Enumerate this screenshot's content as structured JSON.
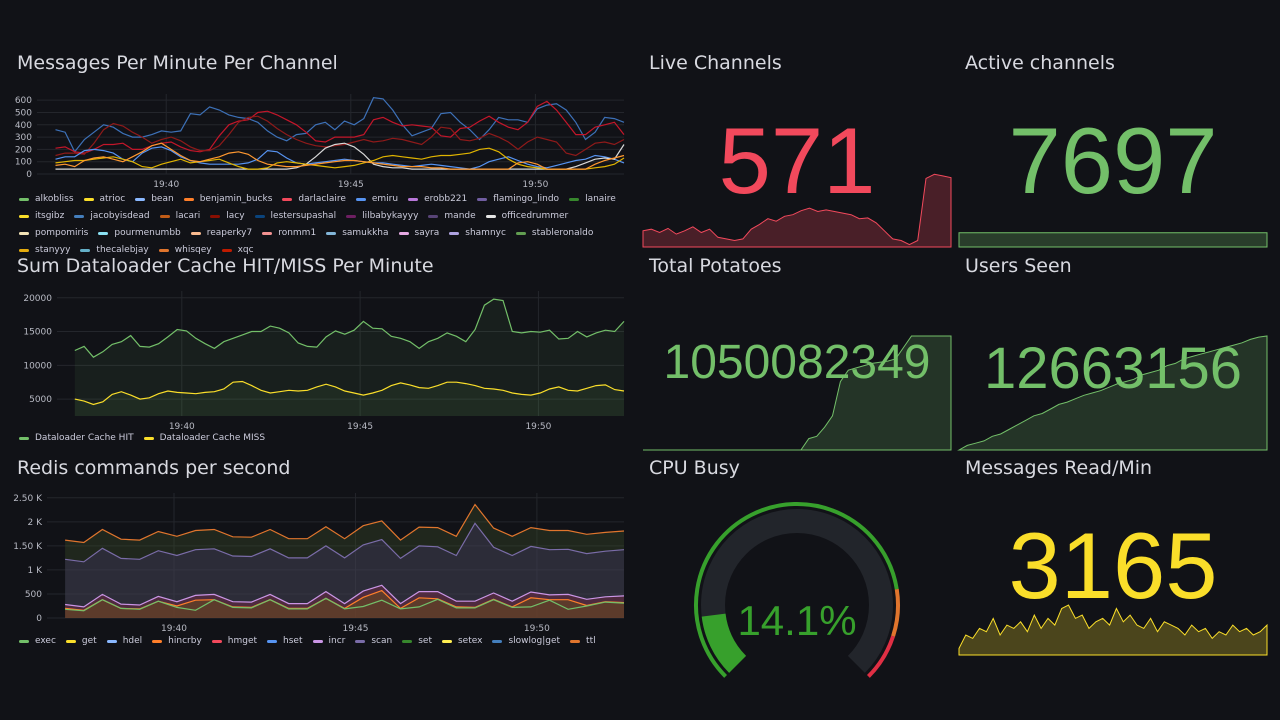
{
  "time_ticks": [
    "19:40",
    "19:45",
    "19:50"
  ],
  "chart_data": [
    {
      "type": "line",
      "title": "Messages Per Minute Per Channel",
      "ylim": [
        0,
        650
      ],
      "yticks": [
        "0",
        "100",
        "200",
        "300",
        "400",
        "500",
        "600"
      ],
      "xlabel": "",
      "ylabel": "",
      "x_start_min": 37,
      "x_step_min": 0.5,
      "series": [
        {
          "name": "lestersupashal",
          "color": "#3d71b8",
          "values": [
            360,
            340,
            180,
            280,
            340,
            400,
            380,
            330,
            300,
            300,
            320,
            350,
            340,
            350,
            490,
            480,
            545,
            520,
            480,
            460,
            450,
            420,
            350,
            300,
            270,
            320,
            330,
            400,
            420,
            360,
            430,
            400,
            450,
            620,
            610,
            520,
            400,
            310,
            340,
            370,
            490,
            500,
            420,
            360,
            280,
            360,
            460,
            440,
            440,
            420,
            530,
            560,
            570,
            520,
            420,
            280,
            340,
            460,
            450,
            420
          ]
        },
        {
          "name": "xqc",
          "color": "#c4162a",
          "values": [
            210,
            220,
            180,
            170,
            200,
            240,
            240,
            250,
            200,
            200,
            230,
            250,
            260,
            220,
            190,
            180,
            200,
            310,
            400,
            430,
            440,
            500,
            510,
            480,
            440,
            400,
            340,
            270,
            260,
            300,
            300,
            300,
            320,
            440,
            460,
            420,
            390,
            400,
            390,
            380,
            310,
            300,
            370,
            380,
            430,
            470,
            420,
            380,
            360,
            420,
            550,
            590,
            520,
            420,
            320,
            320,
            380,
            400,
            420,
            320
          ]
        },
        {
          "name": "lacy",
          "color": "#8f1a1a",
          "values": [
            150,
            170,
            170,
            160,
            250,
            360,
            410,
            390,
            340,
            300,
            250,
            280,
            300,
            270,
            220,
            190,
            190,
            230,
            320,
            420,
            460,
            470,
            430,
            370,
            320,
            280,
            250,
            230,
            220,
            230,
            240,
            260,
            280,
            260,
            270,
            290,
            280,
            260,
            240,
            300,
            380,
            370,
            280,
            270,
            290,
            330,
            300,
            260,
            200,
            260,
            300,
            280,
            260,
            170,
            150,
            200,
            250,
            260,
            240,
            280
          ]
        },
        {
          "name": "emiru",
          "color": "#5794f2",
          "values": [
            120,
            140,
            140,
            190,
            200,
            190,
            170,
            120,
            100,
            170,
            210,
            220,
            190,
            140,
            110,
            90,
            80,
            80,
            80,
            80,
            90,
            120,
            190,
            180,
            130,
            90,
            80,
            90,
            100,
            110,
            120,
            110,
            100,
            90,
            90,
            80,
            70,
            60,
            70,
            80,
            70,
            60,
            50,
            40,
            60,
            100,
            120,
            140,
            110,
            80,
            60,
            50,
            70,
            90,
            110,
            120,
            150,
            140,
            120,
            90
          ]
        },
        {
          "name": "officedrummer",
          "color": "#d9d9d9",
          "values": [
            40,
            40,
            40,
            40,
            40,
            40,
            40,
            40,
            40,
            40,
            40,
            40,
            40,
            40,
            40,
            40,
            40,
            40,
            40,
            40,
            40,
            40,
            40,
            40,
            40,
            50,
            80,
            140,
            210,
            240,
            250,
            220,
            160,
            80,
            60,
            50,
            50,
            40,
            40,
            40,
            40,
            40,
            40,
            40,
            40,
            40,
            40,
            40,
            40,
            40,
            40,
            40,
            40,
            40,
            60,
            90,
            120,
            130,
            120,
            240
          ]
        },
        {
          "name": "stanyyy",
          "color": "#e0b400",
          "values": [
            90,
            100,
            110,
            110,
            120,
            130,
            140,
            120,
            100,
            60,
            50,
            80,
            100,
            120,
            90,
            100,
            110,
            120,
            90,
            60,
            40,
            40,
            50,
            90,
            100,
            90,
            80,
            70,
            60,
            50,
            60,
            70,
            90,
            110,
            140,
            150,
            140,
            130,
            120,
            140,
            150,
            150,
            160,
            170,
            200,
            210,
            180,
            120,
            80,
            60,
            50,
            40,
            40,
            40,
            40,
            40,
            50,
            60,
            80,
            130
          ]
        },
        {
          "name": "benjamin_bucks",
          "color": "#ff9830",
          "values": [
            70,
            80,
            60,
            110,
            130,
            140,
            120,
            100,
            140,
            180,
            230,
            250,
            200,
            150,
            110,
            100,
            120,
            140,
            170,
            180,
            160,
            110,
            80,
            70,
            60,
            60,
            70,
            80,
            90,
            100,
            110,
            110,
            100,
            90,
            80,
            70,
            60,
            60,
            60,
            50,
            50,
            40,
            40,
            40,
            40,
            40,
            40,
            40,
            90,
            100,
            80,
            40,
            40,
            40,
            40,
            40,
            80,
            110,
            130,
            150
          ]
        }
      ],
      "legend": [
        "alkobliss",
        "atrioc",
        "bean",
        "benjamin_bucks",
        "darlaclaire",
        "emiru",
        "erobb221",
        "flamingo_lindo",
        "lanaire",
        "itsgibz",
        "jacobyisdead",
        "lacari",
        "lacy",
        "lestersupashal",
        "lilbabykayyy",
        "mande",
        "officedrummer",
        "pompomiris",
        "pourmenumbb",
        "reaperky7",
        "ronmm1",
        "samukkha",
        "sayra",
        "shamnyc",
        "stableronaldo",
        "stanyyy",
        "thecalebjay",
        "whisqey",
        "xqc"
      ],
      "legend_colors": [
        "#73bf69",
        "#fade2a",
        "#8ab8ff",
        "#ff7f2a",
        "#f2495c",
        "#5794f2",
        "#b877d9",
        "#705da0",
        "#37872d",
        "#fade2a",
        "#447ebc",
        "#c15c17",
        "#890f02",
        "#0a437c",
        "#6d1f62",
        "#584477",
        "#e5e5e5",
        "#f2e2b5",
        "#8ae0f2",
        "#f9ba8f",
        "#f29191",
        "#82b5d8",
        "#e5a8e2",
        "#aea2e0",
        "#629e51",
        "#e5ac0e",
        "#64b0c8",
        "#e0752d",
        "#bf1b00"
      ]
    },
    {
      "type": "area",
      "title": "Sum Dataloader Cache HIT/MISS Per Minute",
      "ylim": [
        2500,
        21000
      ],
      "yticks": [
        "5000",
        "10000",
        "15000",
        "20000"
      ],
      "x_start_min": 37,
      "x_step_min": 0.5,
      "series": [
        {
          "name": "Dataloader Cache HIT",
          "color": "#73bf69",
          "values": [
            12200,
            12800,
            11200,
            12000,
            13100,
            13500,
            14400,
            12800,
            12700,
            13200,
            14200,
            15300,
            15100,
            14000,
            13200,
            12500,
            13500,
            14000,
            14500,
            15000,
            15000,
            15800,
            15500,
            14800,
            13300,
            12800,
            12700,
            14200,
            15100,
            14600,
            15200,
            16500,
            15500,
            15400,
            14300,
            14000,
            13500,
            12500,
            13500,
            14000,
            14800,
            14300,
            13500,
            15300,
            18900,
            19800,
            19600,
            15000,
            14800,
            15000,
            14900,
            15200,
            13900,
            14000,
            15000,
            14200,
            14800,
            15200,
            15000,
            16500
          ]
        },
        {
          "name": "Dataloader Cache MISS",
          "color": "#fade2a",
          "values": [
            5000,
            4700,
            4200,
            4600,
            5700,
            6100,
            5600,
            5000,
            5200,
            5800,
            6200,
            6000,
            5900,
            5800,
            6000,
            6100,
            6500,
            7500,
            7600,
            7000,
            6300,
            5900,
            6100,
            6300,
            6200,
            6300,
            6800,
            7200,
            6800,
            6200,
            5900,
            5600,
            5900,
            6300,
            7000,
            7400,
            7100,
            6700,
            6600,
            7000,
            7500,
            7500,
            7300,
            7000,
            6600,
            6500,
            6300,
            5900,
            5700,
            5600,
            5900,
            6500,
            6800,
            6300,
            6200,
            6600,
            7000,
            7100,
            6400,
            6200
          ]
        }
      ],
      "legend": [
        "Dataloader Cache HIT",
        "Dataloader Cache MISS"
      ],
      "legend_colors": [
        "#73bf69",
        "#fade2a"
      ]
    },
    {
      "type": "area",
      "title": "Redis commands per second",
      "ylim": [
        0,
        2600
      ],
      "yticks": [
        "0",
        "500",
        "1 K",
        "1.50 K",
        "2 K",
        "2.50 K"
      ],
      "x_start_min": 37,
      "x_step_min": 0.5,
      "series": [
        {
          "name": "ttl",
          "color": "#e0752d",
          "fill": "rgba(60,80,40,.35)",
          "values": [
            1620,
            1570,
            1840,
            1640,
            1620,
            1800,
            1700,
            1820,
            1840,
            1690,
            1680,
            1840,
            1650,
            1650,
            1900,
            1650,
            1920,
            2020,
            1620,
            1890,
            1880,
            1700,
            2360,
            1870,
            1700,
            1880,
            1820,
            1820,
            1740,
            1780,
            1810
          ]
        },
        {
          "name": "slowlog|get",
          "color": "#7a6ca8",
          "fill": "rgba(70,55,110,.35)",
          "values": [
            1220,
            1170,
            1450,
            1240,
            1220,
            1400,
            1300,
            1420,
            1440,
            1290,
            1280,
            1440,
            1250,
            1250,
            1500,
            1250,
            1520,
            1630,
            1240,
            1500,
            1480,
            1300,
            1970,
            1470,
            1300,
            1490,
            1420,
            1430,
            1340,
            1390,
            1420
          ]
        },
        {
          "name": "incr",
          "color": "#ca95e5",
          "fill": "rgba(120,40,70,.45)",
          "values": [
            280,
            230,
            490,
            290,
            270,
            450,
            340,
            470,
            490,
            340,
            330,
            490,
            300,
            300,
            550,
            300,
            560,
            680,
            300,
            550,
            550,
            350,
            350,
            520,
            350,
            540,
            480,
            490,
            390,
            440,
            460
          ]
        },
        {
          "name": "hincrby",
          "color": "#ff7f2a",
          "fill": "rgba(110,80,20,.45)",
          "values": [
            200,
            160,
            380,
            200,
            190,
            350,
            250,
            370,
            380,
            230,
            220,
            380,
            200,
            200,
            410,
            200,
            430,
            570,
            200,
            420,
            400,
            230,
            220,
            390,
            230,
            420,
            380,
            380,
            260,
            340,
            320
          ]
        },
        {
          "name": "exec",
          "color": "#73bf69",
          "fill": "rgba(0,0,0,0)",
          "values": [
            180,
            150,
            380,
            200,
            180,
            350,
            220,
            160,
            380,
            220,
            210,
            380,
            190,
            190,
            410,
            190,
            240,
            370,
            190,
            230,
            390,
            210,
            210,
            380,
            220,
            230,
            370,
            180,
            250,
            330,
            310
          ]
        }
      ],
      "legend": [
        "exec",
        "get",
        "hdel",
        "hincrby",
        "hmget",
        "hset",
        "incr",
        "scan",
        "set",
        "setex",
        "slowlog|get",
        "ttl"
      ],
      "legend_colors": [
        "#73bf69",
        "#fade2a",
        "#8ab8ff",
        "#ff7f2a",
        "#f2495c",
        "#5794f2",
        "#ca95e5",
        "#7a6ca8",
        "#37872d",
        "#ffee52",
        "#447ebc",
        "#e0752d"
      ]
    }
  ],
  "stats": [
    {
      "title": "Live Channels",
      "value": "571",
      "color": "#f2495c",
      "fill": "rgba(242,73,92,.25)",
      "spark": [
        20,
        22,
        18,
        23,
        16,
        20,
        25,
        18,
        22,
        12,
        10,
        8,
        10,
        22,
        28,
        35,
        32,
        38,
        40,
        45,
        48,
        44,
        46,
        44,
        42,
        40,
        35,
        36,
        30,
        20,
        10,
        8,
        3,
        8,
        85,
        90,
        88,
        86
      ]
    },
    {
      "title": "Active channels",
      "value": "7697",
      "color": "#73bf69",
      "fill": "rgba(115,191,105,.25)",
      "spark": [
        50,
        50,
        50,
        50,
        50,
        50,
        50
      ]
    },
    {
      "title": "Total Potatoes",
      "value": "1050082349",
      "color": "#73bf69",
      "fill": "rgba(115,191,105,.2)",
      "spark": [
        0,
        0,
        0,
        0,
        0,
        0,
        0,
        0,
        0,
        0,
        0,
        0,
        0,
        0,
        0,
        0,
        0,
        0,
        0,
        0,
        0,
        10,
        12,
        20,
        30,
        60,
        70,
        72,
        74,
        76,
        77,
        78,
        80,
        90,
        100,
        100,
        100,
        100,
        100,
        100
      ]
    },
    {
      "title": "Users Seen",
      "value": "12663156",
      "color": "#73bf69",
      "fill": "rgba(115,191,105,.2)",
      "spark": [
        0,
        4,
        6,
        8,
        12,
        14,
        18,
        22,
        26,
        30,
        32,
        36,
        40,
        42,
        45,
        48,
        50,
        52,
        55,
        58,
        60,
        62,
        66,
        68,
        70,
        74,
        76,
        80,
        82,
        84,
        86,
        88,
        90,
        92,
        94,
        97,
        99,
        100
      ]
    },
    {
      "title": "Messages Read/Min",
      "value": "3165",
      "color": "#fade2a",
      "fill": "rgba(250,222,42,.25)",
      "spark": [
        10,
        30,
        25,
        40,
        35,
        55,
        30,
        45,
        40,
        50,
        35,
        60,
        40,
        55,
        45,
        70,
        75,
        55,
        60,
        40,
        50,
        55,
        45,
        70,
        50,
        60,
        45,
        40,
        55,
        35,
        50,
        45,
        40,
        30,
        45,
        35,
        40,
        25,
        35,
        30,
        45,
        35,
        40,
        30,
        35,
        45
      ]
    }
  ],
  "gauge": {
    "title": "CPU Busy",
    "value": "14.1%",
    "percent": 14.1,
    "color": "#37a02c"
  }
}
